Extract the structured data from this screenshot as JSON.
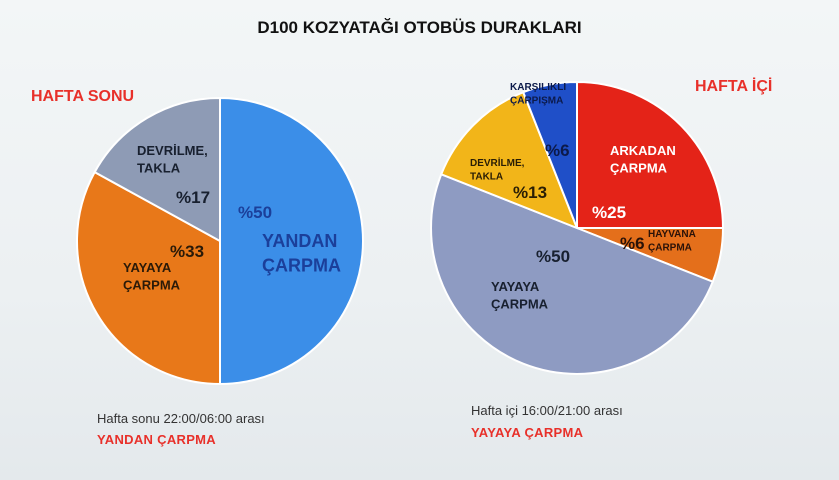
{
  "title": "D100 KOZYATAĞI OTOBÜS DURAKLARI",
  "colors": {
    "accent": "#e8302a"
  },
  "left": {
    "heading": "HAFTA SONU",
    "note": "Hafta sonu 22:00/06:00 arası",
    "highlight": "YANDAN ÇARPMA"
  },
  "right": {
    "heading": "HAFTA İÇİ",
    "note": "Hafta içi 16:00/21:00 arası",
    "highlight": "YAYAYA ÇARPMA"
  },
  "chart_data": [
    {
      "type": "pie",
      "title": "HAFTA SONU",
      "slices": [
        {
          "label": [
            "YANDAN",
            "ÇARPMA"
          ],
          "value_label": "%50",
          "value": 50,
          "color": "#3b8ee8"
        },
        {
          "label": [
            "YAYAYA",
            "ÇARPMA"
          ],
          "value_label": "%33",
          "value": 33,
          "color": "#e87819"
        },
        {
          "label": [
            "DEVRİLME,",
            "TAKLA"
          ],
          "value_label": "%17",
          "value": 17,
          "color": "#8e9bb5"
        }
      ]
    },
    {
      "type": "pie",
      "title": "HAFTA İÇİ",
      "slices": [
        {
          "label": [
            "ARKADAN",
            "ÇARPMA"
          ],
          "value_label": "%25",
          "value": 25,
          "color": "#e42318"
        },
        {
          "label": [
            "HAYVANA",
            "ÇARPMA"
          ],
          "value_label": "%6",
          "value": 6,
          "color": "#e46f1b"
        },
        {
          "label": [
            "YAYAYA",
            "ÇARPMA"
          ],
          "value_label": "%50",
          "value": 50,
          "color": "#8e9bc2"
        },
        {
          "label": [
            "DEVRİLME,",
            "TAKLA"
          ],
          "value_label": "%13",
          "value": 13,
          "color": "#f2b519"
        },
        {
          "label": [
            "KARŞILIKLI",
            "ÇARPIŞMA"
          ],
          "value_label": "%6",
          "value": 6,
          "color": "#1f4fc8"
        }
      ]
    }
  ]
}
